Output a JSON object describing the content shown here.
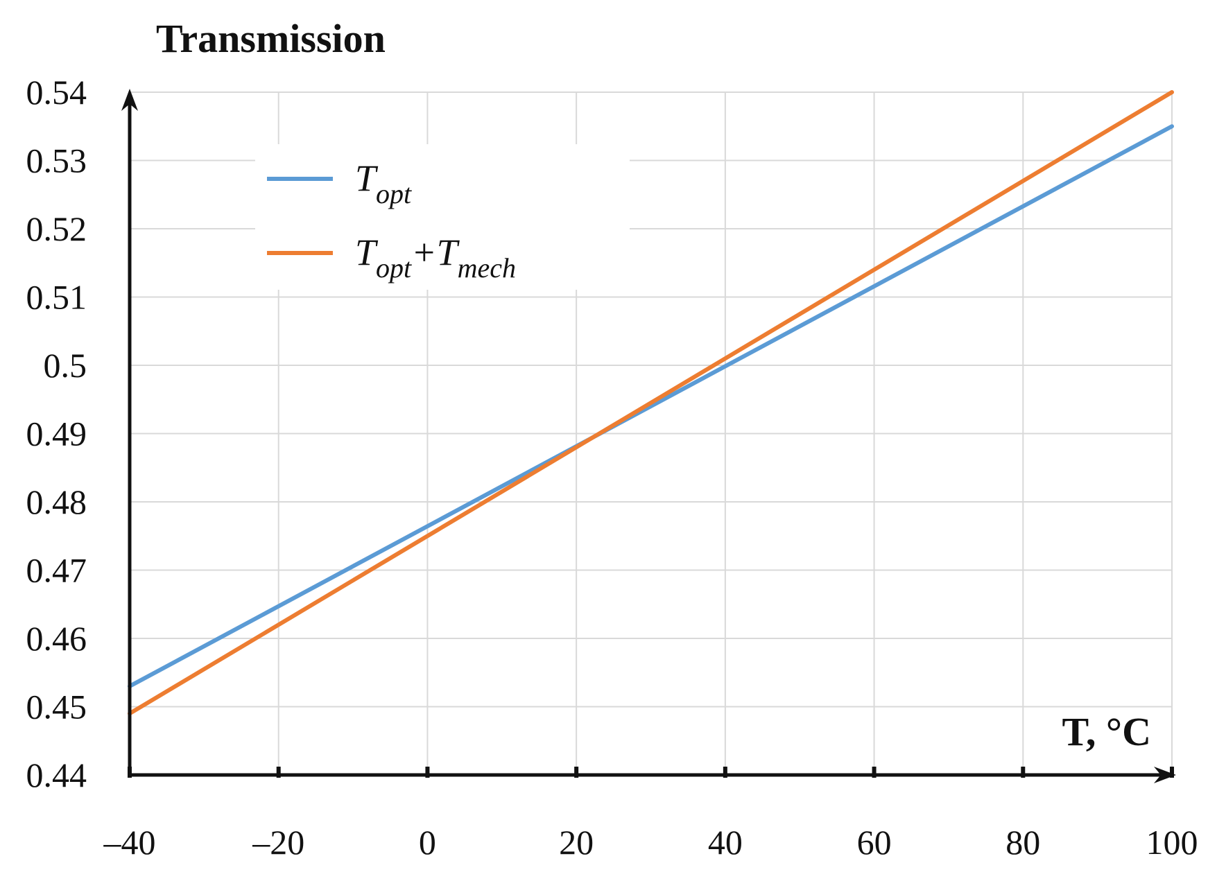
{
  "chart_data": {
    "type": "line",
    "ylabel": "Transmission",
    "xlabel": "T, °C",
    "xlim": [
      -40,
      100
    ],
    "ylim": [
      0.44,
      0.54
    ],
    "x_ticks": [
      -40,
      -20,
      0,
      20,
      40,
      60,
      80,
      100
    ],
    "x_tick_labels": [
      "–40",
      "–20",
      "0",
      "20",
      "40",
      "60",
      "80",
      "100"
    ],
    "y_ticks": [
      0.44,
      0.45,
      0.46,
      0.47,
      0.48,
      0.49,
      0.5,
      0.51,
      0.52,
      0.53,
      0.54
    ],
    "y_tick_labels": [
      "0.44",
      "0.45",
      "0.46",
      "0.47",
      "0.48",
      "0.49",
      "0.5",
      "0.51",
      "0.52",
      "0.53",
      "0.54"
    ],
    "grid": true,
    "legend_position": "top-left",
    "series": [
      {
        "name": "Topt",
        "legend_main": "T",
        "legend_sub": "opt",
        "color": "#5B9BD5",
        "x": [
          -40,
          100
        ],
        "y": [
          0.453,
          0.535
        ]
      },
      {
        "name": "Topt+Tmech",
        "legend_main": "T",
        "legend_sub": "opt",
        "legend_plus": "+T",
        "legend_sub2": "mech",
        "color": "#ED7D31",
        "x": [
          -40,
          100
        ],
        "y": [
          0.449,
          0.54
        ]
      }
    ]
  }
}
